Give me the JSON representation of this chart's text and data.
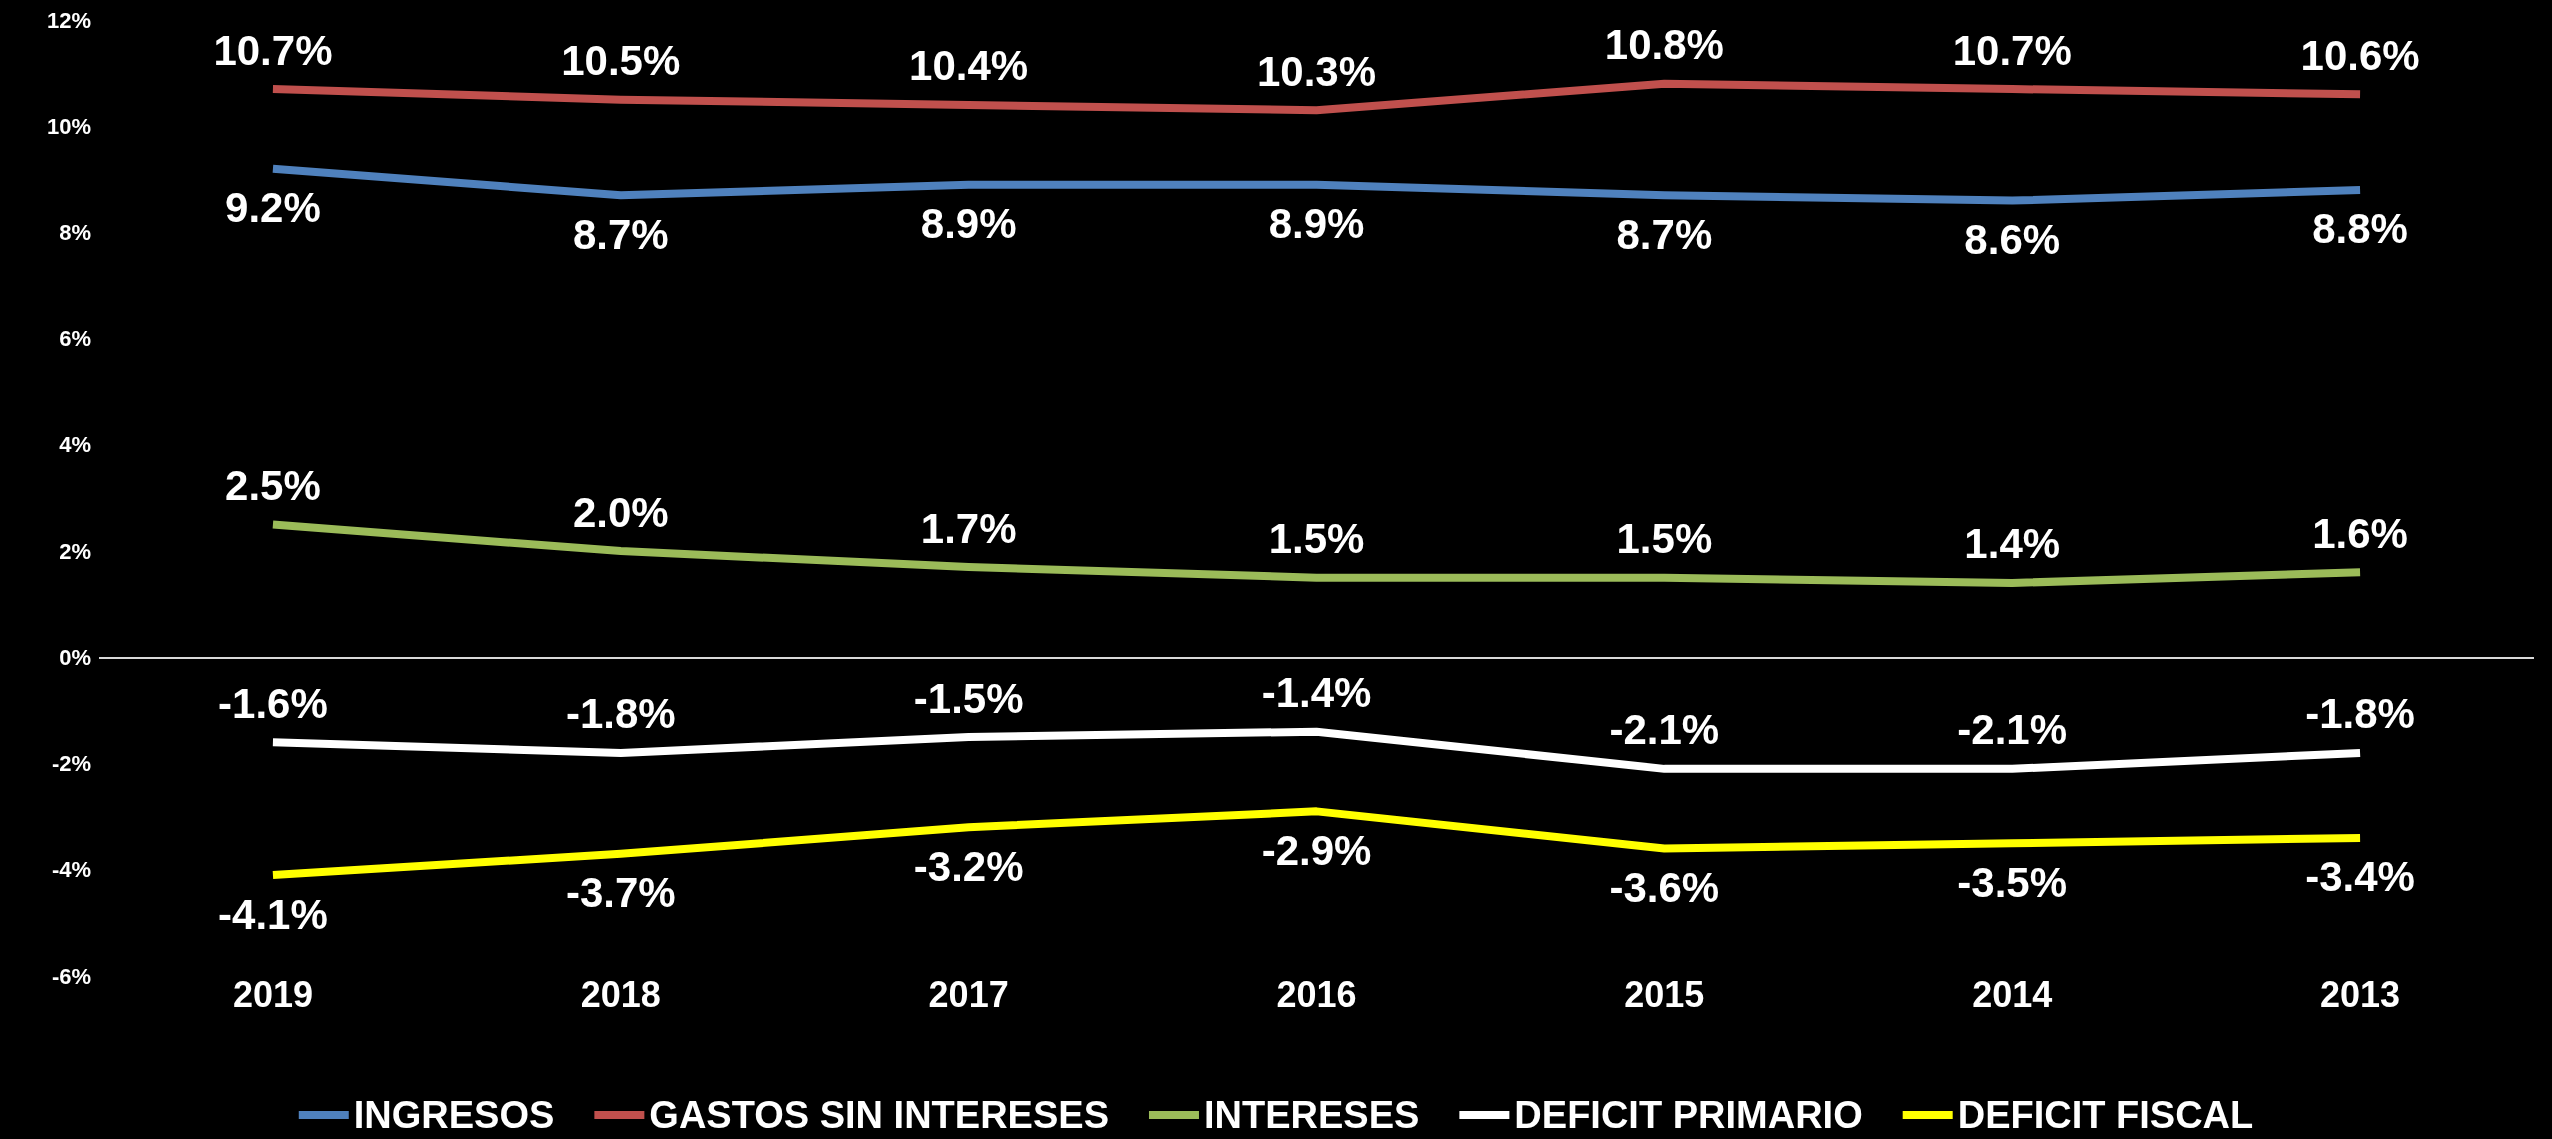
{
  "chart_data": {
    "type": "line",
    "categories": [
      "2019",
      "2018",
      "2017",
      "2016",
      "2015",
      "2014",
      "2013"
    ],
    "series": [
      {
        "name": "INGRESOS",
        "color": "#4f81bd",
        "values": [
          9.2,
          8.7,
          8.9,
          8.9,
          8.7,
          8.6,
          8.8
        ],
        "value_labels": [
          "9.2%",
          "8.7%",
          "8.9%",
          "8.9%",
          "8.7%",
          "8.6%",
          "8.8%"
        ]
      },
      {
        "name": "GASTOS SIN INTERESES",
        "color": "#c0504d",
        "values": [
          10.7,
          10.5,
          10.4,
          10.3,
          10.8,
          10.7,
          10.6
        ],
        "value_labels": [
          "10.7%",
          "10.5%",
          "10.4%",
          "10.3%",
          "10.8%",
          "10.7%",
          "10.6%"
        ]
      },
      {
        "name": "INTERESES",
        "color": "#9bbb59",
        "values": [
          2.5,
          2.0,
          1.7,
          1.5,
          1.5,
          1.4,
          1.6
        ],
        "value_labels": [
          "2.5%",
          "2.0%",
          "1.7%",
          "1.5%",
          "1.5%",
          "1.4%",
          "1.6%"
        ]
      },
      {
        "name": "DEFICIT PRIMARIO",
        "color": "#ffffff",
        "values": [
          -1.6,
          -1.8,
          -1.5,
          -1.4,
          -2.1,
          -2.1,
          -1.8
        ],
        "value_labels": [
          "-1.6%",
          "-1.8%",
          "-1.5%",
          "-1.4%",
          "-2.1%",
          "-2.1%",
          "-1.8%"
        ]
      },
      {
        "name": "DEFICIT FISCAL",
        "color": "#ffff00",
        "values": [
          -4.1,
          -3.7,
          -3.2,
          -2.9,
          -3.6,
          -3.5,
          -3.4
        ],
        "value_labels": [
          "-4.1%",
          "-3.7%",
          "-3.2%",
          "-2.9%",
          "-3.6%",
          "-3.5%",
          "-3.4%"
        ]
      }
    ],
    "ylim": [
      -6,
      12
    ],
    "yticks": [
      {
        "value": -6,
        "label": "-6%"
      },
      {
        "value": -4,
        "label": "-4%"
      },
      {
        "value": -2,
        "label": "-2%"
      },
      {
        "value": 0,
        "label": "0%"
      },
      {
        "value": 2,
        "label": "2%"
      },
      {
        "value": 4,
        "label": "4%"
      },
      {
        "value": 6,
        "label": "6%"
      },
      {
        "value": 8,
        "label": "8%"
      },
      {
        "value": 10,
        "label": "10%"
      },
      {
        "value": 12,
        "label": "12%"
      }
    ],
    "ref_lines": [
      {
        "axis": "y",
        "value": 0,
        "color": "#d9d9d9"
      }
    ],
    "grid": false,
    "legend": "bottom",
    "marker": "none",
    "line_style": "solid"
  }
}
